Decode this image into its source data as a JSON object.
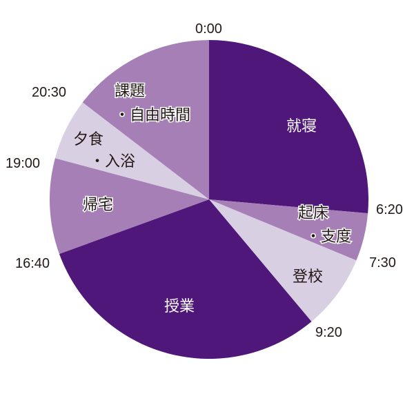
{
  "chart_data": {
    "type": "pie",
    "title": "",
    "start": "0:00",
    "direction": "clockwise",
    "total_hours": 24,
    "slices": [
      {
        "label_lines": [
          "就寝"
        ],
        "start": "0:00",
        "end": "6:20",
        "hours": 6.333,
        "color": "#50177a",
        "tone": "dark"
      },
      {
        "label_lines": [
          "起床",
          "・支度"
        ],
        "start": "6:20",
        "end": "7:30",
        "hours": 1.167,
        "color": "#a67fb7",
        "tone": "med"
      },
      {
        "label_lines": [
          "登校"
        ],
        "start": "7:30",
        "end": "9:20",
        "hours": 1.833,
        "color": "#d9cfe3",
        "tone": "light"
      },
      {
        "label_lines": [
          "授業"
        ],
        "start": "9:20",
        "end": "16:40",
        "hours": 7.333,
        "color": "#50177a",
        "tone": "dark"
      },
      {
        "label_lines": [
          "帰宅"
        ],
        "start": "16:40",
        "end": "19:00",
        "hours": 2.333,
        "color": "#a67fb7",
        "tone": "med"
      },
      {
        "label_lines": [
          "夕食",
          "・入浴"
        ],
        "start": "19:00",
        "end": "20:30",
        "hours": 1.5,
        "color": "#d9cfe3",
        "tone": "light"
      },
      {
        "label_lines": [
          "課題",
          "・自由時間"
        ],
        "start": "20:30",
        "end": "24:00",
        "hours": 3.5,
        "color": "#a67fb7",
        "tone": "med"
      }
    ],
    "time_labels": [
      "0:00",
      "6:20",
      "7:30",
      "9:20",
      "16:40",
      "19:00",
      "20:30"
    ]
  }
}
